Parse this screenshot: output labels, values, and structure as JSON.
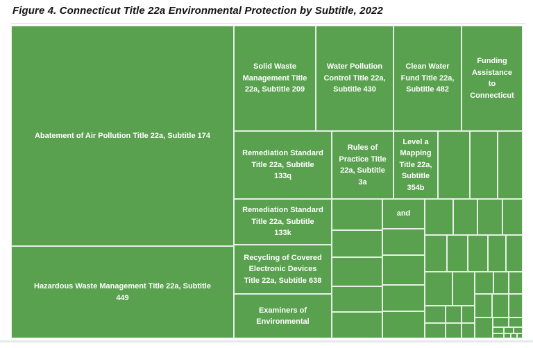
{
  "figure_title": "Figure 4. Connecticut Title 22a Environmental Protection by Subtitle, 2022",
  "chart_data": {
    "type": "treemap",
    "title": "Figure 4. Connecticut Title 22a Environmental Protection by Subtitle, 2022",
    "value_note": "No numeric values are printed on the chart; estimated_share_pct is estimated from each rectangle's area as a share of the whole treemap",
    "fill_color": "#59a14f",
    "divider_color": "#ffffff",
    "label_color": "#ffffff",
    "legend": "none",
    "items": [
      {
        "label": "Abatement of Air Pollution Title 22a, Subtitle 174",
        "wrapped": "Abatement of Air Pollution Title 22a, Subtitle 174",
        "estimated_share_pct": 30.7
      },
      {
        "label": "Hazardous Waste Management Title 22a, Subtitle 449",
        "wrapped": "Hazardous Waste Management Title 22a, Subtitle\n449",
        "estimated_share_pct": 12.8
      },
      {
        "label": "Solid Waste Management Title 22a, Subtitle 209",
        "wrapped": "Solid Waste\nManagement Title\n22a, Subtitle 209",
        "estimated_share_pct": 5.4
      },
      {
        "label": "Water Pollution Control Title 22a, Subtitle 430",
        "wrapped": "Water Pollution\nControl Title 22a,\nSubtitle 430",
        "estimated_share_pct": 5.1
      },
      {
        "label": "Clean Water Fund Title 22a, Subtitle 482",
        "wrapped": "Clean Water\nFund Title 22a,\nSubtitle 482",
        "estimated_share_pct": 4.5
      },
      {
        "label": "Funding Assistance to Connecticut",
        "wrapped": "Funding\nAssistance\nto\nConnecticut",
        "estimated_share_pct": 4.0
      },
      {
        "label": "Remediation Standard Title 22a, Subtitle 133q",
        "wrapped": "Remediation Standard\nTitle 22a, Subtitle\n133q",
        "estimated_share_pct": 4.2
      },
      {
        "label": "Rules of Practice Title 22a, Subtitle 3a",
        "wrapped": "Rules of\nPractice Title\n22a, Subtitle\n3a",
        "estimated_share_pct": 2.6
      },
      {
        "label": "Level a Mapping Title 22a, Subtitle 354b",
        "wrapped": "Level a\nMapping\nTitle 22a,\nSubtitle\n354b",
        "estimated_share_pct": 1.9
      },
      {
        "label": "Remediation Standard Title 22a, Subtitle 133k",
        "wrapped": "Remediation Standard\nTitle 22a, Subtitle\n133k",
        "estimated_share_pct": 2.8
      },
      {
        "label": "Recycling of Covered Electronic Devices Title 22a, Subtitle 638",
        "wrapped": "Recycling of Covered\nElectronic Devices\nTitle 22a, Subtitle 638",
        "estimated_share_pct": 3.0
      },
      {
        "label": "Examiners of Environmental",
        "wrapped": "Examiners of\nEnvironmental",
        "estimated_share_pct": 2.7
      },
      {
        "label": "and",
        "wrapped": "and",
        "estimated_share_pct": 0.8
      }
    ],
    "unlabeled_boxes": {
      "count": 45,
      "combined_estimated_share_pct": 19.5
    }
  }
}
